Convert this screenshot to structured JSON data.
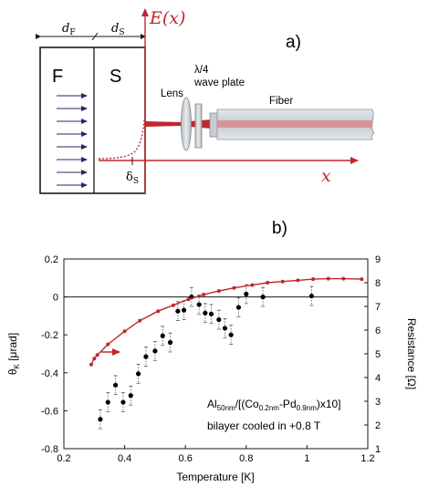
{
  "panel_a": {
    "label": "a)",
    "layer_F_label": "F",
    "layer_S_label": "S",
    "dF_label_main": "d",
    "dF_label_sub": "F",
    "dS_label_main": "d",
    "dS_label_sub": "S",
    "field_label": "E(x)",
    "x_axis_label": "x",
    "delta_label_main": "δ",
    "delta_label_sub": "S",
    "lens_label": "Lens",
    "waveplate_label_line1": "λ/4",
    "waveplate_label_line2": "wave plate",
    "fiber_label": "Fiber",
    "colors": {
      "field": "#c0272d",
      "frame": "#1a1a1a",
      "magnetization_arrows": "#1f2a6b",
      "fiber": "#cfd3d7",
      "fiber_core": "#d9868a"
    }
  },
  "panel_b": {
    "label": "b)",
    "annotation_line1_main": "Al",
    "annotation_line1_sub1": "50nm",
    "annotation_line1_mid": "/[(Co",
    "annotation_line1_sub2": "0.2nm",
    "annotation_line1_mid2": "-Pd",
    "annotation_line1_sub3": "0.9nm",
    "annotation_line1_end": ")x10]",
    "annotation_line2": "bilayer cooled in +0.8 T"
  },
  "chart_data": {
    "type": "scatter",
    "xlabel": "Temperature [K]",
    "ylabel_main": "θ",
    "ylabel_sub": "K",
    "ylabel_unit": " [μrad]",
    "y2label": "Resistance [Ω]",
    "xlim": [
      0.2,
      1.2
    ],
    "ylim": [
      -0.8,
      0.2
    ],
    "y2lim": [
      1,
      9
    ],
    "xticks": [
      "0.2",
      "0.4",
      "0.6",
      "0.8",
      "1",
      "1.2"
    ],
    "yticks": [
      "0.2",
      "0",
      "-0.2",
      "-0.4",
      "-0.6",
      "-0.8"
    ],
    "y2ticks": [
      "9",
      "8",
      "7",
      "6",
      "5",
      "4",
      "3",
      "2",
      "1"
    ],
    "zero_line": true,
    "series": [
      {
        "axis": "left",
        "color": "#000000",
        "x": [
          0.32,
          0.345,
          0.37,
          0.395,
          0.42,
          0.445,
          0.47,
          0.5,
          0.525,
          0.55,
          0.575,
          0.595,
          0.62,
          0.645,
          0.665,
          0.685,
          0.71,
          0.73,
          0.75,
          0.775,
          0.8,
          0.855,
          1.015
        ],
        "y": [
          -0.645,
          -0.555,
          -0.465,
          -0.555,
          -0.52,
          -0.405,
          -0.315,
          -0.285,
          -0.205,
          -0.24,
          -0.075,
          -0.07,
          0.0,
          -0.04,
          -0.085,
          -0.09,
          -0.12,
          -0.165,
          -0.2,
          -0.055,
          0.015,
          0.0,
          0.005
        ],
        "err": [
          0.05,
          0.05,
          0.05,
          0.05,
          0.05,
          0.05,
          0.05,
          0.05,
          0.05,
          0.05,
          0.05,
          0.05,
          0.05,
          0.05,
          0.05,
          0.05,
          0.05,
          0.05,
          0.05,
          0.05,
          0.05,
          0.05,
          0.05
        ]
      },
      {
        "axis": "right",
        "color": "#c0272d",
        "x": [
          0.29,
          0.3,
          0.31,
          0.345,
          0.4,
          0.45,
          0.51,
          0.56,
          0.61,
          0.66,
          0.71,
          0.76,
          0.82,
          0.87,
          0.92,
          0.97,
          1.02,
          1.07,
          1.12,
          1.18
        ],
        "y": [
          4.55,
          4.8,
          4.95,
          5.4,
          5.95,
          6.4,
          6.8,
          7.05,
          7.3,
          7.5,
          7.65,
          7.78,
          7.9,
          8.0,
          8.05,
          8.1,
          8.15,
          8.17,
          8.17,
          8.15
        ]
      }
    ]
  }
}
